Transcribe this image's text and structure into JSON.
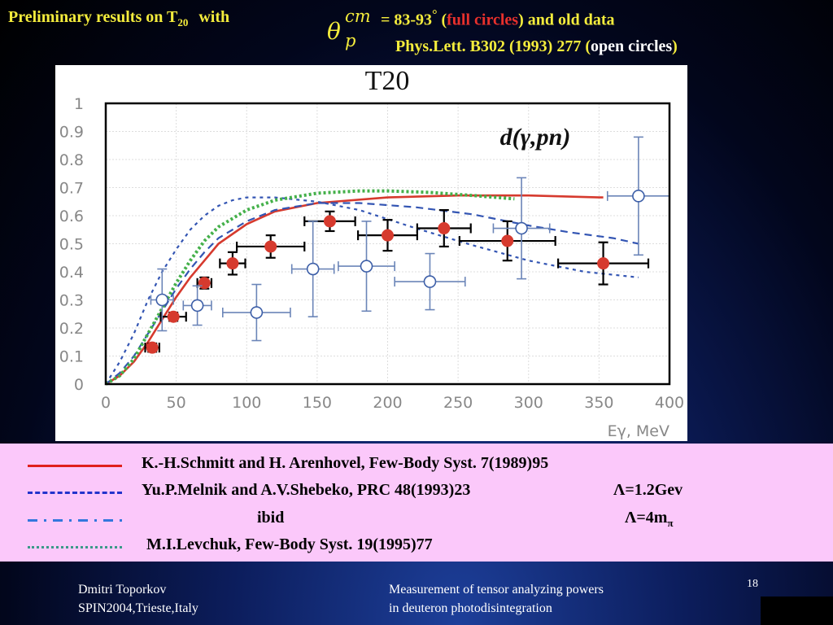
{
  "header": {
    "line1_part1": "Preliminary results on T",
    "line1_sub": "20",
    "line1_with": "with",
    "theta": "θ",
    "theta_sup": "cm",
    "theta_sub": "p",
    "angle_range": "= 83-93",
    "degree": "°",
    "paren_open": "(",
    "full_circles": "full circles",
    "paren_close": ")",
    "and_old_data": "and old data",
    "line2_ref": "Phys.Lett. B302 (1993) 277",
    "line2_paren_open": "(",
    "line2_open_circles": "open circles",
    "line2_paren_close": ")"
  },
  "chart_data": {
    "type": "scatter",
    "title": "T20",
    "annotation": "d(γ,pn)",
    "xlabel": "Eγ, MeV",
    "ylabel": "",
    "xlim": [
      0,
      400
    ],
    "ylim": [
      0,
      1
    ],
    "xticks": [
      "0",
      "50",
      "100",
      "150",
      "200",
      "250",
      "300",
      "350",
      "400"
    ],
    "yticks": [
      "0",
      "0.1",
      "0.2",
      "0.3",
      "0.4",
      "0.5",
      "0.6",
      "0.7",
      "0.8",
      "0.9",
      "1"
    ],
    "grid": true,
    "series": [
      {
        "style": "full circles",
        "color": "#d63a2e",
        "points": [
          {
            "x": 33,
            "y": 0.13,
            "xerr": 5,
            "yerr": 0.015
          },
          {
            "x": 48,
            "y": 0.24,
            "xerr": 9,
            "yerr": 0.015
          },
          {
            "x": 70,
            "y": 0.36,
            "xerr": 5,
            "yerr": 0.02
          },
          {
            "x": 90,
            "y": 0.43,
            "xerr": 9,
            "yerr": 0.04
          },
          {
            "x": 117,
            "y": 0.49,
            "xerr": 24,
            "yerr": 0.04
          },
          {
            "x": 159,
            "y": 0.58,
            "xerr": 18,
            "yerr": 0.035
          },
          {
            "x": 200,
            "y": 0.53,
            "xerr": 21,
            "yerr": 0.055
          },
          {
            "x": 240,
            "y": 0.555,
            "xerr": 19,
            "yerr": 0.065
          },
          {
            "x": 285,
            "y": 0.51,
            "xerr": 34,
            "yerr": 0.07
          },
          {
            "x": 353,
            "y": 0.43,
            "xerr": 32,
            "yerr": 0.075
          }
        ]
      },
      {
        "style": "open circles",
        "color": "#3d5fa8",
        "points": [
          {
            "x": 40,
            "y": 0.3,
            "xerr": 8,
            "yerr": 0.11
          },
          {
            "x": 65,
            "y": 0.28,
            "xerr": 10,
            "yerr": 0.07
          },
          {
            "x": 107,
            "y": 0.255,
            "xerr": 24,
            "yerr": 0.1
          },
          {
            "x": 147,
            "y": 0.41,
            "xerr": 15,
            "yerr": 0.17
          },
          {
            "x": 185,
            "y": 0.42,
            "xerr": 20,
            "yerr": 0.16
          },
          {
            "x": 230,
            "y": 0.365,
            "xerr": 25,
            "yerr": 0.1
          },
          {
            "x": 295,
            "y": 0.555,
            "xerr": 20,
            "yerr": 0.18
          },
          {
            "x": 378,
            "y": 0.67,
            "xerr": 22,
            "yerr": 0.21
          }
        ]
      }
    ],
    "curves": [
      {
        "color": "#d63a2e",
        "dash": "solid",
        "points": [
          [
            0,
            0
          ],
          [
            10,
            0.03
          ],
          [
            20,
            0.08
          ],
          [
            30,
            0.15
          ],
          [
            40,
            0.23
          ],
          [
            50,
            0.31
          ],
          [
            60,
            0.38
          ],
          [
            70,
            0.44
          ],
          [
            80,
            0.5
          ],
          [
            100,
            0.57
          ],
          [
            120,
            0.615
          ],
          [
            150,
            0.645
          ],
          [
            200,
            0.665
          ],
          [
            250,
            0.672
          ],
          [
            300,
            0.672
          ],
          [
            350,
            0.665
          ],
          [
            353,
            0.665
          ]
        ]
      },
      {
        "color": "#3355b3",
        "dash": "long-dash",
        "points": [
          [
            0,
            0
          ],
          [
            10,
            0.04
          ],
          [
            20,
            0.1
          ],
          [
            30,
            0.18
          ],
          [
            40,
            0.26
          ],
          [
            50,
            0.34
          ],
          [
            60,
            0.41
          ],
          [
            70,
            0.47
          ],
          [
            80,
            0.52
          ],
          [
            100,
            0.58
          ],
          [
            120,
            0.62
          ],
          [
            150,
            0.645
          ],
          [
            180,
            0.645
          ],
          [
            220,
            0.63
          ],
          [
            260,
            0.605
          ],
          [
            300,
            0.565
          ],
          [
            330,
            0.54
          ],
          [
            360,
            0.52
          ],
          [
            378,
            0.5
          ]
        ]
      },
      {
        "color": "#3355b3",
        "dash": "dash-dot",
        "points": [
          [
            0,
            0
          ],
          [
            10,
            0.08
          ],
          [
            20,
            0.18
          ],
          [
            30,
            0.3
          ],
          [
            40,
            0.4
          ],
          [
            50,
            0.48
          ],
          [
            60,
            0.55
          ],
          [
            70,
            0.6
          ],
          [
            80,
            0.635
          ],
          [
            90,
            0.655
          ],
          [
            100,
            0.665
          ],
          [
            120,
            0.665
          ],
          [
            150,
            0.65
          ],
          [
            180,
            0.62
          ],
          [
            220,
            0.555
          ],
          [
            260,
            0.495
          ],
          [
            300,
            0.44
          ],
          [
            340,
            0.4
          ],
          [
            378,
            0.38
          ]
        ]
      },
      {
        "color": "#44b04a",
        "dash": "dotted",
        "points": [
          [
            0,
            0
          ],
          [
            10,
            0.03
          ],
          [
            20,
            0.09
          ],
          [
            30,
            0.18
          ],
          [
            40,
            0.27
          ],
          [
            50,
            0.36
          ],
          [
            60,
            0.44
          ],
          [
            70,
            0.51
          ],
          [
            80,
            0.56
          ],
          [
            100,
            0.62
          ],
          [
            120,
            0.655
          ],
          [
            150,
            0.68
          ],
          [
            180,
            0.688
          ],
          [
            200,
            0.688
          ],
          [
            230,
            0.683
          ],
          [
            260,
            0.672
          ],
          [
            290,
            0.66
          ]
        ]
      }
    ]
  },
  "legend": [
    {
      "text": "K.-H.Schmitt and H. Arenhovel, Few-Body Syst. 7(1989)95",
      "lambda": "",
      "color": "#e0201c",
      "dash": "solid"
    },
    {
      "text": "Yu.P.Melnik and A.V.Shebeko, PRC 48(1993)23",
      "lambda": "Λ=1.2Gev",
      "color": "#2233cc",
      "dash": "long-dash"
    },
    {
      "text": "ibid",
      "lambda": "Λ=4m",
      "lambda_sub": "π",
      "color": "#3377dd",
      "dash": "dash-dot"
    },
    {
      "text": "M.I.Levchuk, Few-Body Syst. 19(1995)77",
      "lambda": "",
      "color": "#3a9a88",
      "dash": "dotted"
    }
  ],
  "footer": {
    "author": "Dmitri Toporkov",
    "conference": "SPIN2004,Trieste,Italy",
    "title_line1": "Measurement of tensor analyzing powers",
    "title_line2": "in deuteron photodisintegration",
    "page": "18"
  }
}
